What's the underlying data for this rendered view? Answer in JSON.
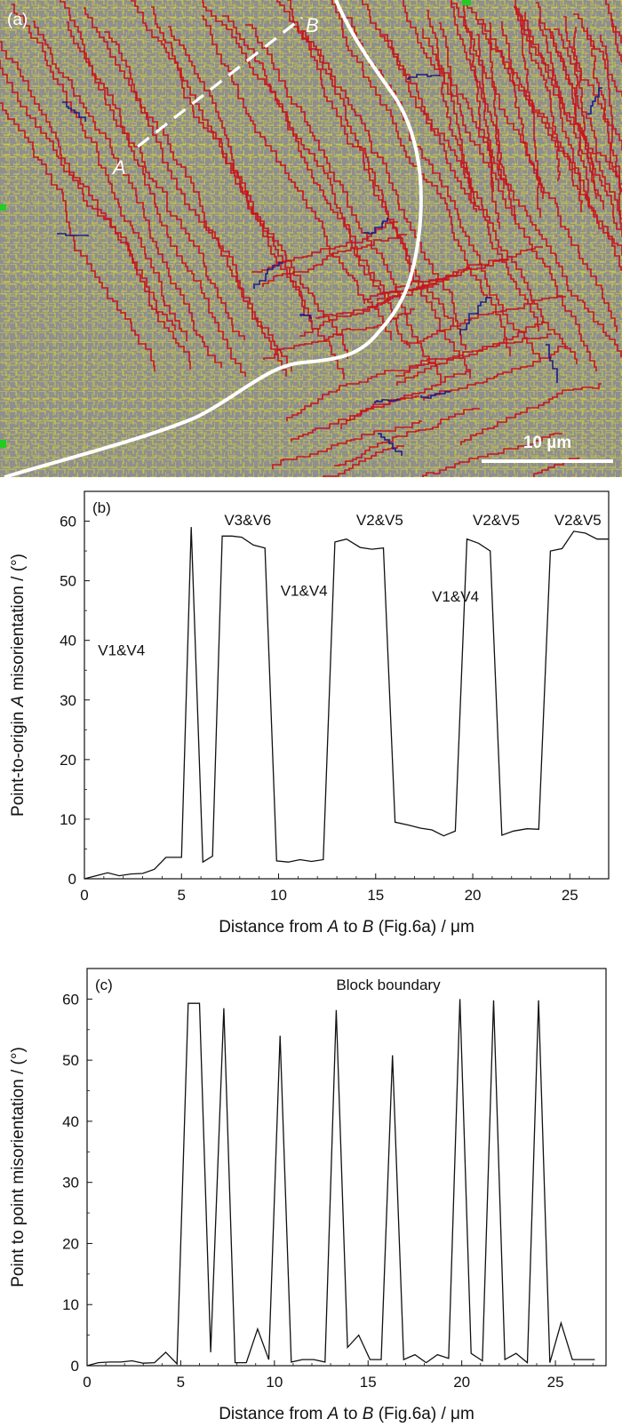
{
  "panel_a": {
    "label": "(a)",
    "point_a_label": "A",
    "point_b_label": "B",
    "scale_bar_label": "10 µm",
    "colors": {
      "background": "#8f8f8f",
      "high_angle_boundary": "#c8141e",
      "low_angle_boundary": "#e6e620",
      "twin_boundary": "#1c1c8c",
      "prior_austenite_boundary": "#ffffff"
    }
  },
  "chart_data": [
    {
      "type": "line",
      "panel_label": "(b)",
      "xlabel": "Distance from A to B (Fig.6a) / μm",
      "xlabel_parts": [
        "Distance from ",
        "A",
        " to ",
        "B",
        " (Fig.6a) / μm"
      ],
      "ylabel": "Point-to-origin A misorientation / (°)",
      "ylabel_parts": [
        "Point-to-origin ",
        "A",
        " misorientation / (°)"
      ],
      "xlim": [
        0,
        27
      ],
      "ylim": [
        0,
        65
      ],
      "xticks": [
        0,
        5,
        10,
        15,
        20,
        25
      ],
      "yticks": [
        0,
        10,
        20,
        30,
        40,
        50,
        60
      ],
      "annotations": [
        {
          "text": "V1&V4",
          "x": 0.7,
          "y": 37.5
        },
        {
          "text": "V3&V6",
          "x": 7.2,
          "y": 59.3
        },
        {
          "text": "V1&V4",
          "x": 10.1,
          "y": 47.5
        },
        {
          "text": "V2&V5",
          "x": 14.0,
          "y": 59.3
        },
        {
          "text": "V1&V4",
          "x": 17.9,
          "y": 46.5
        },
        {
          "text": "V2&V5",
          "x": 20.0,
          "y": 59.3
        },
        {
          "text": "V2&V5",
          "x": 24.2,
          "y": 59.3
        }
      ],
      "x": [
        0,
        0.6,
        1.2,
        1.8,
        2.4,
        3.0,
        3.6,
        4.2,
        4.8,
        5.0,
        5.5,
        6.1,
        6.6,
        7.1,
        7.6,
        8.1,
        8.7,
        9.3,
        9.9,
        10.5,
        11.1,
        11.7,
        12.3,
        12.9,
        13.5,
        14.2,
        14.8,
        15.4,
        16.0,
        16.7,
        17.3,
        17.9,
        18.5,
        19.1,
        19.7,
        20.3,
        20.9,
        21.5,
        22.1,
        22.8,
        23.4,
        24.0,
        24.6,
        25.2,
        25.8,
        26.4,
        27.0
      ],
      "y": [
        0,
        0.5,
        1.0,
        0.5,
        0.8,
        0.9,
        1.6,
        3.6,
        3.6,
        3.6,
        59.0,
        2.8,
        3.8,
        57.5,
        57.5,
        57.3,
        56.0,
        55.5,
        3.0,
        2.8,
        3.2,
        2.9,
        3.2,
        56.5,
        57.0,
        55.6,
        55.3,
        55.5,
        9.5,
        9.0,
        8.5,
        8.2,
        7.2,
        8.0,
        57.0,
        56.3,
        55.0,
        7.3,
        8.0,
        8.4,
        8.3,
        55.0,
        55.4,
        58.3,
        58.0,
        57.0,
        57.0
      ]
    },
    {
      "type": "line",
      "panel_label": "(c)",
      "xlabel": "Distance from A to B (Fig.6a) / μm",
      "xlabel_parts": [
        "Distance from ",
        "A",
        " to ",
        "B",
        " (Fig.6a) / μm"
      ],
      "ylabel": "Point to point misorientation / (°)",
      "xlim": [
        0,
        27.7
      ],
      "ylim": [
        0,
        65
      ],
      "xticks": [
        0,
        5,
        10,
        15,
        20,
        25
      ],
      "yticks": [
        0,
        10,
        20,
        30,
        40,
        50,
        60
      ],
      "annotations": [
        {
          "text": "Block boundary",
          "x": 13.3,
          "y": 61.5
        }
      ],
      "x": [
        0,
        0.6,
        1.2,
        1.8,
        2.4,
        3.0,
        3.6,
        4.2,
        4.8,
        5.4,
        6.0,
        6.6,
        7.3,
        7.9,
        8.5,
        9.1,
        9.7,
        10.3,
        10.9,
        11.5,
        12.1,
        12.7,
        13.3,
        13.9,
        14.5,
        15.1,
        15.7,
        16.3,
        16.9,
        17.5,
        18.1,
        18.7,
        19.3,
        19.9,
        20.5,
        21.1,
        21.7,
        22.3,
        22.9,
        23.5,
        24.1,
        24.7,
        25.3,
        25.9,
        26.5,
        27.1
      ],
      "y": [
        0,
        0.5,
        0.6,
        0.6,
        0.8,
        0.4,
        0.5,
        2.2,
        0.3,
        59.3,
        59.3,
        2.2,
        58.5,
        0.5,
        0.5,
        6.0,
        1.0,
        54.0,
        0.6,
        1.0,
        1.0,
        0.6,
        58.2,
        3.0,
        5.0,
        1.0,
        1.0,
        50.8,
        1.0,
        1.8,
        0.5,
        1.8,
        1.2,
        60.0,
        2.0,
        0.8,
        59.8,
        1.0,
        2.0,
        0.5,
        59.8,
        0.5,
        7.0,
        1.0,
        1.0,
        1.0
      ]
    }
  ]
}
